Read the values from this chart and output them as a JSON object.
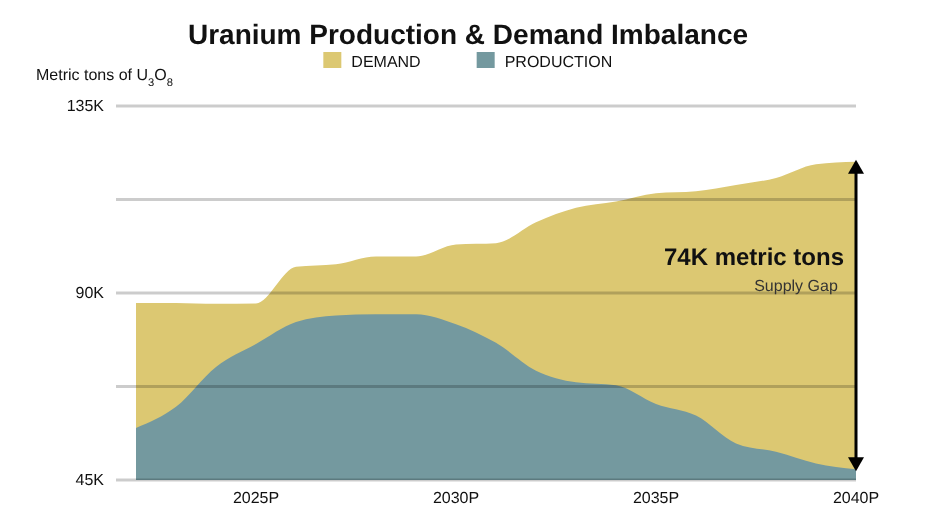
{
  "chart_data": {
    "type": "area",
    "title": "Uranium Production & Demand Imbalance",
    "ylabel": "Metric tons of U$_{3}$O$_{8}$",
    "x": [
      2022,
      2023,
      2024,
      2025,
      2026,
      2027,
      2028,
      2029,
      2030,
      2031,
      2032,
      2033,
      2034,
      2035,
      2036,
      2037,
      2038,
      2039,
      2040
    ],
    "series": [
      {
        "name": "DEMAND",
        "color": "#dcc872",
        "values": [
          87.6,
          87.6,
          87.4,
          87.5,
          96.3,
          96.9,
          98.8,
          98.8,
          101.7,
          102,
          107,
          110.5,
          112,
          114,
          114.5,
          116,
          117.7,
          121,
          121.6
        ]
      },
      {
        "name": "PRODUCTION",
        "color": "#74999f",
        "values": [
          57.5,
          62.6,
          72.2,
          77.7,
          83,
          84.6,
          84.9,
          84.9,
          82.5,
          78,
          71.3,
          68.5,
          67.8,
          63.3,
          60.5,
          53.8,
          51.8,
          49,
          47.6
        ]
      }
    ],
    "xlim": [
      2021.5,
      2040
    ],
    "xticks": [
      {
        "value": 2025,
        "label": "2025P"
      },
      {
        "value": 2030,
        "label": "2030P"
      },
      {
        "value": 2035,
        "label": "2035P"
      },
      {
        "value": 2040,
        "label": "2040P"
      }
    ],
    "ylim": [
      45,
      135
    ],
    "yticks": [
      {
        "value": 45,
        "label": "45K"
      },
      {
        "value": 67.5,
        "label": null
      },
      {
        "value": 90,
        "label": "90K"
      },
      {
        "value": 112.5,
        "label": null
      },
      {
        "value": 135,
        "label": "135K"
      }
    ],
    "grid": "y",
    "legend": "top",
    "annotations": [
      {
        "text": "74K metric tons",
        "x": 2040,
        "y": 90
      },
      "Supply Gap"
    ]
  }
}
